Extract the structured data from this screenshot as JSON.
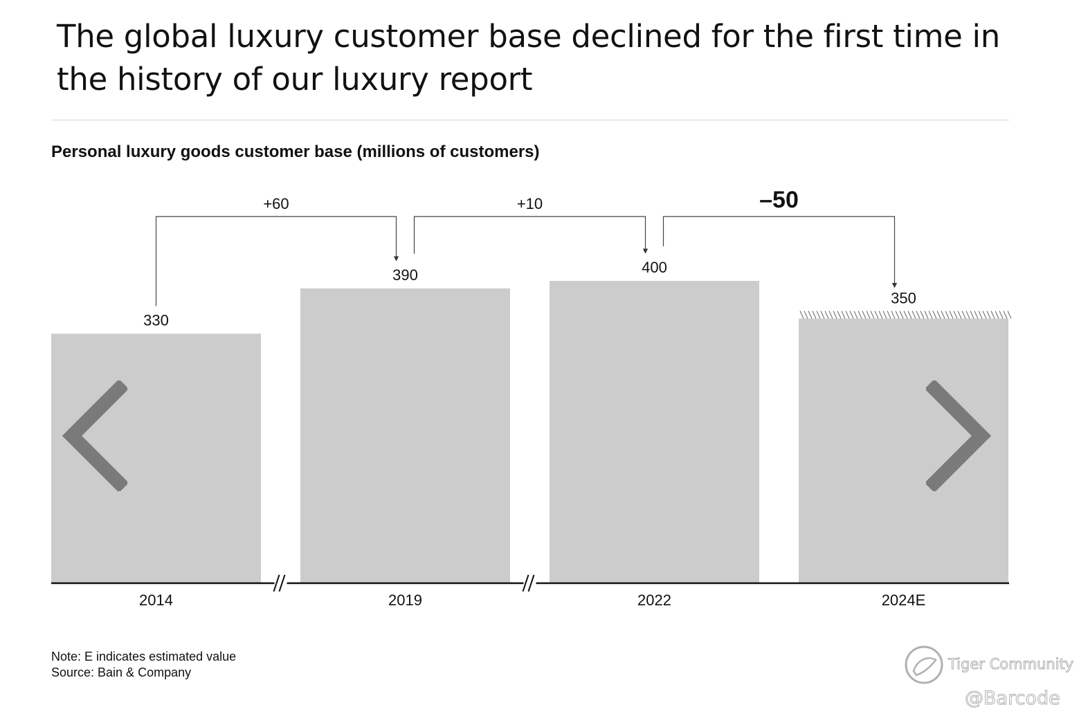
{
  "headline": "The global luxury customer base declined for the first time in the history of our luxury report",
  "chart_data": {
    "type": "bar",
    "title": "Personal luxury goods customer base (millions of customers)",
    "categories": [
      "2014",
      "2019",
      "2022",
      "2024E"
    ],
    "values": [
      330,
      390,
      400,
      350
    ],
    "value_labels": [
      "330",
      "390",
      "400",
      "350"
    ],
    "estimated": [
      false,
      false,
      false,
      true
    ],
    "changes": [
      {
        "from": "2014",
        "to": "2019",
        "label": "+60"
      },
      {
        "from": "2019",
        "to": "2022",
        "label": "+10"
      },
      {
        "from": "2022",
        "to": "2024E",
        "label": "–50",
        "emphasis": true
      }
    ],
    "axis_breaks": [
      "2014-2019",
      "2019-2022"
    ],
    "xlabel": "",
    "ylabel": "",
    "ylim": [
      0,
      400
    ],
    "grid": false,
    "bar_color": "#cccccc"
  },
  "footnotes": {
    "note": "Note: E indicates estimated value",
    "source": "Source: Bain & Company"
  },
  "navigation": {
    "prev_icon": "chevron-left-icon",
    "next_icon": "chevron-right-icon"
  },
  "watermark": {
    "brand": "Tiger Community",
    "handle": "@Barcode"
  }
}
